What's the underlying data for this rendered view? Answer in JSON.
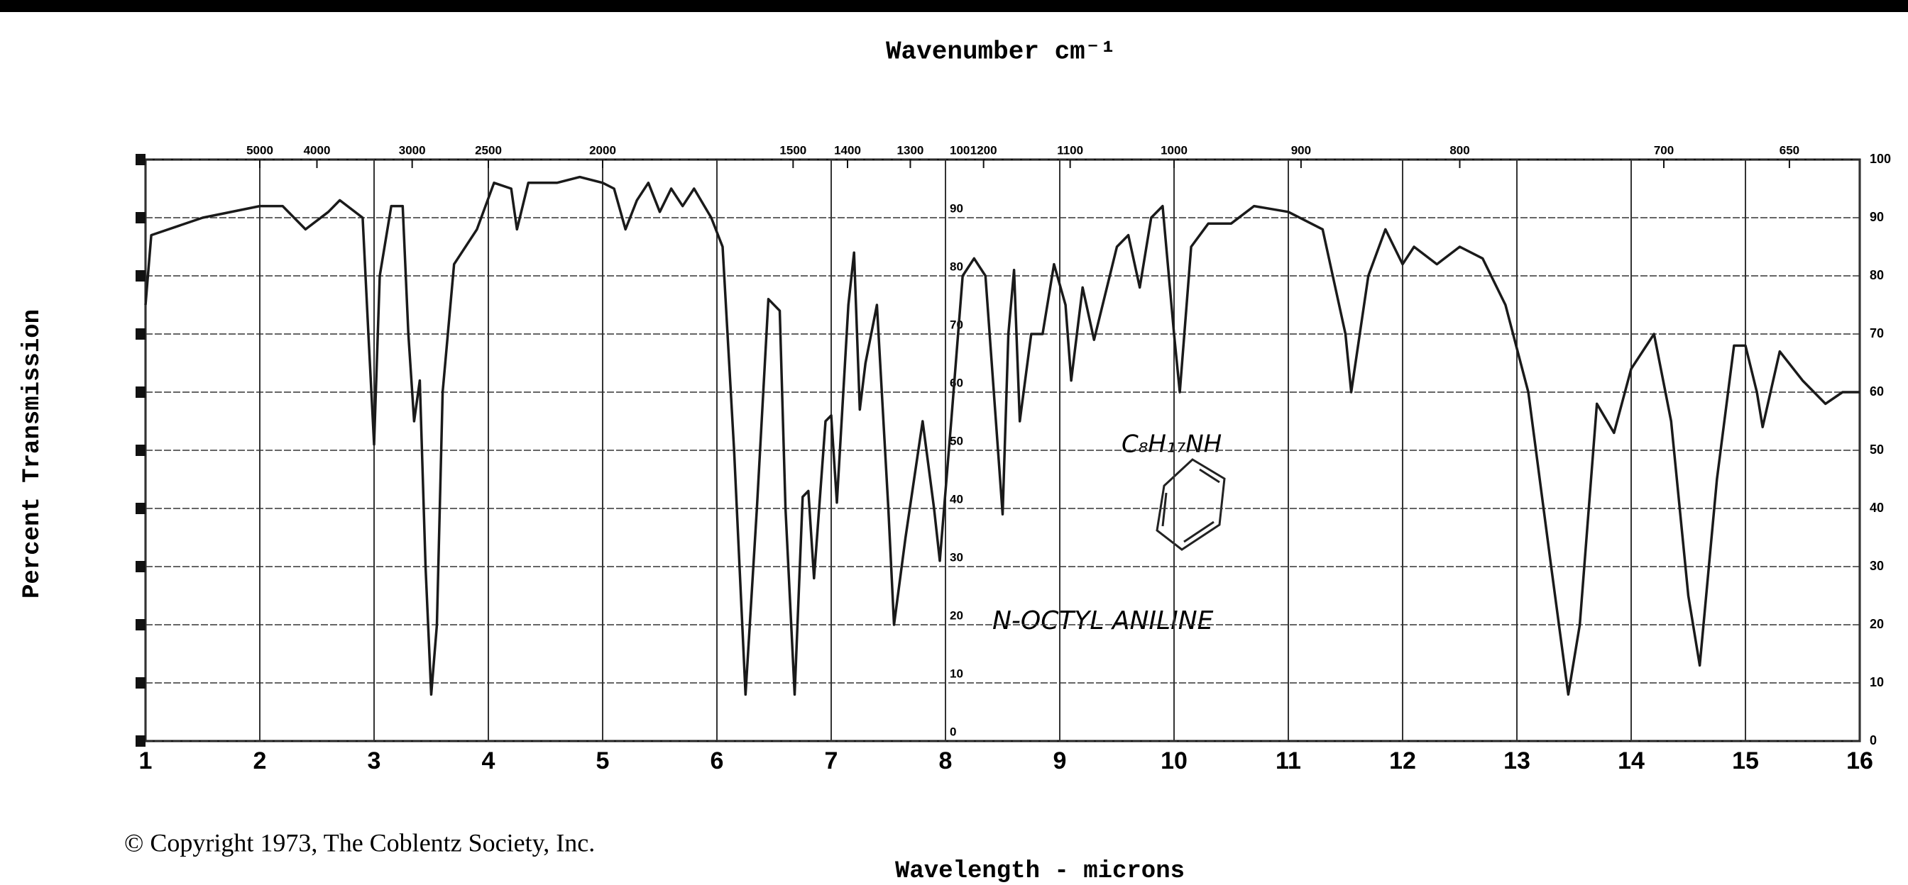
{
  "chart_data": {
    "type": "line",
    "x_label": "Wavelength - microns",
    "x2_label": "Wavenumber cm⁻¹",
    "y_label": "Percent Transmission",
    "annotations": [
      "C₈H₁₇NH",
      "N-OCTYL ANILINE"
    ],
    "footer": "© Copyright 1973, The Coblentz Society, Inc.",
    "color": "#1a1a1a",
    "grid": true,
    "xlim": [
      1,
      16
    ],
    "ylim": [
      0,
      100
    ],
    "xticks": [
      1,
      2,
      3,
      4,
      5,
      6,
      7,
      8,
      9,
      10,
      11,
      12,
      13,
      14,
      15,
      16
    ],
    "yticks": [
      0,
      10,
      20,
      30,
      40,
      50,
      60,
      70,
      80,
      90,
      100
    ],
    "x2ticks": [
      5000,
      4000,
      3000,
      2500,
      2000,
      1500,
      1400,
      1300,
      1200,
      1100,
      1000,
      900,
      800,
      700,
      650
    ],
    "x": [
      1.0,
      1.05,
      1.5,
      2.0,
      2.2,
      2.4,
      2.6,
      2.7,
      2.9,
      2.95,
      3.0,
      3.05,
      3.15,
      3.25,
      3.3,
      3.35,
      3.4,
      3.45,
      3.5,
      3.55,
      3.6,
      3.7,
      3.9,
      4.05,
      4.2,
      4.25,
      4.35,
      4.6,
      4.8,
      5.0,
      5.1,
      5.2,
      5.3,
      5.4,
      5.5,
      5.6,
      5.7,
      5.8,
      5.95,
      6.05,
      6.15,
      6.25,
      6.35,
      6.45,
      6.55,
      6.6,
      6.68,
      6.75,
      6.8,
      6.85,
      6.95,
      7.0,
      7.05,
      7.15,
      7.2,
      7.25,
      7.3,
      7.4,
      7.5,
      7.55,
      7.65,
      7.8,
      7.9,
      7.95,
      8.05,
      8.15,
      8.25,
      8.35,
      8.5,
      8.55,
      8.6,
      8.65,
      8.75,
      8.85,
      8.95,
      9.05,
      9.1,
      9.2,
      9.3,
      9.5,
      9.6,
      9.7,
      9.8,
      9.9,
      10.0,
      10.05,
      10.15,
      10.3,
      10.5,
      10.7,
      11.0,
      11.3,
      11.5,
      11.55,
      11.7,
      11.85,
      12.0,
      12.1,
      12.3,
      12.5,
      12.7,
      12.9,
      13.1,
      13.3,
      13.45,
      13.55,
      13.7,
      13.85,
      14.0,
      14.2,
      14.35,
      14.5,
      14.6,
      14.75,
      14.9,
      15.0,
      15.1,
      15.15,
      15.3,
      15.5,
      15.7,
      15.85,
      16.0
    ],
    "values": [
      75,
      87,
      90,
      92,
      92,
      88,
      91,
      93,
      90,
      70,
      51,
      80,
      92,
      92,
      70,
      55,
      62,
      30,
      8,
      20,
      60,
      82,
      88,
      96,
      95,
      88,
      96,
      96,
      97,
      96,
      95,
      88,
      93,
      96,
      91,
      95,
      92,
      95,
      90,
      85,
      50,
      8,
      40,
      76,
      74,
      40,
      8,
      42,
      43,
      28,
      55,
      56,
      41,
      75,
      84,
      57,
      65,
      75,
      40,
      20,
      35,
      55,
      40,
      31,
      55,
      80,
      83,
      80,
      39,
      70,
      81,
      55,
      70,
      70,
      82,
      75,
      62,
      78,
      69,
      85,
      87,
      78,
      90,
      92,
      70,
      60,
      85,
      89,
      89,
      92,
      91,
      88,
      70,
      60,
      80,
      88,
      82,
      85,
      82,
      85,
      83,
      75,
      60,
      30,
      8,
      20,
      58,
      53,
      64,
      70,
      55,
      25,
      13,
      45,
      68,
      68,
      60,
      54,
      67,
      62,
      58,
      60,
      60
    ]
  }
}
